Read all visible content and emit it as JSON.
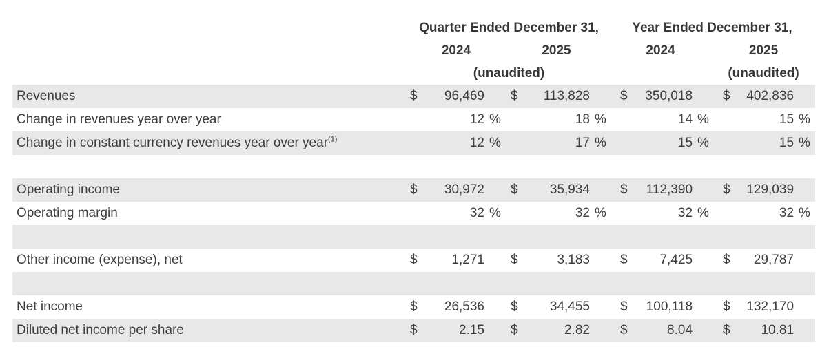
{
  "colors": {
    "background": "#ffffff",
    "row_shade": "#e8e8e8",
    "body_text": "#3d3d3d",
    "header_text": "#383838"
  },
  "table": {
    "dollar_sign": "$",
    "percent_sign": "%",
    "header": {
      "groups": [
        {
          "period": "Quarter Ended December 31,",
          "years": [
            "2024",
            "2025"
          ],
          "unaudited": "(unaudited)"
        },
        {
          "period": "Year Ended December 31,",
          "years": [
            "2024",
            "2025"
          ],
          "unaudited": "(unaudited)"
        }
      ]
    },
    "rows": [
      {
        "label": "Revenues",
        "type": "dollar",
        "values": [
          "96,469",
          "113,828",
          "350,018",
          "402,836"
        ],
        "shaded": true
      },
      {
        "label": "Change in revenues year over year",
        "type": "percent",
        "values": [
          "12",
          "18",
          "14",
          "15"
        ],
        "shaded": false
      },
      {
        "label": "Change in constant currency revenues year over year",
        "superscript": "(1)",
        "type": "percent",
        "values": [
          "12",
          "17",
          "15",
          "15"
        ],
        "shaded": true
      },
      {
        "type": "spacer",
        "shaded": false
      },
      {
        "label": "Operating income",
        "type": "dollar",
        "values": [
          "30,972",
          "35,934",
          "112,390",
          "129,039"
        ],
        "shaded": true
      },
      {
        "label": "Operating margin",
        "type": "percent",
        "values": [
          "32",
          "32",
          "32",
          "32"
        ],
        "shaded": false
      },
      {
        "type": "spacer",
        "shaded": true
      },
      {
        "label": "Other income (expense), net",
        "type": "dollar",
        "values": [
          "1,271",
          "3,183",
          "7,425",
          "29,787"
        ],
        "shaded": false
      },
      {
        "type": "spacer",
        "shaded": true
      },
      {
        "label": "Net income",
        "type": "dollar",
        "values": [
          "26,536",
          "34,455",
          "100,118",
          "132,170"
        ],
        "shaded": false
      },
      {
        "label": "Diluted net income per share",
        "type": "dollar",
        "values": [
          "2.15",
          "2.82",
          "8.04",
          "10.81"
        ],
        "shaded": true
      }
    ]
  }
}
